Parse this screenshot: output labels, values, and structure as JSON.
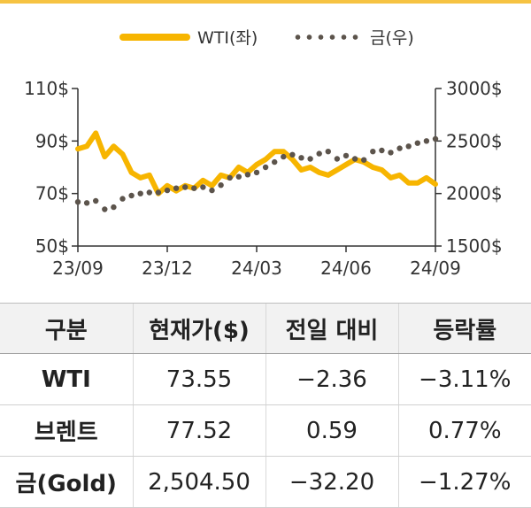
{
  "chart_data": {
    "type": "line",
    "legend": [
      {
        "label": "WTI(좌)",
        "style": "solid",
        "color": "#f7b500"
      },
      {
        "label": "금(우)",
        "style": "dotted",
        "color": "#5c544c"
      }
    ],
    "left_axis": {
      "ticks": [
        "50$",
        "70$",
        "90$",
        "110$"
      ],
      "range": [
        50,
        110
      ]
    },
    "right_axis": {
      "ticks": [
        "1500$",
        "2000$",
        "2500$",
        "3000$"
      ],
      "range": [
        1500,
        3000
      ]
    },
    "x_ticks": [
      "23/09",
      "23/12",
      "24/03",
      "24/06",
      "24/09"
    ],
    "series": [
      {
        "name": "WTI(좌)",
        "axis": "left",
        "color": "#f7b500",
        "x": [
          0,
          0.1,
          0.2,
          0.3,
          0.4,
          0.5,
          0.6,
          0.7,
          0.8,
          0.9,
          1.0,
          1.1,
          1.2,
          1.3,
          1.4,
          1.5,
          1.6,
          1.7,
          1.8,
          1.9,
          2.0,
          2.1,
          2.2,
          2.3,
          2.4,
          2.5,
          2.6,
          2.7,
          2.8,
          2.9,
          3.0,
          3.1,
          3.2,
          3.3,
          3.4,
          3.5,
          3.6,
          3.7,
          3.8,
          3.9,
          4.0
        ],
        "values": [
          87,
          88,
          93,
          84,
          88,
          85,
          78,
          76,
          77,
          70,
          73,
          71,
          73,
          72,
          75,
          73,
          77,
          76,
          80,
          78,
          81,
          83,
          86,
          86,
          83,
          79,
          80,
          78,
          77,
          79,
          81,
          83,
          82,
          80,
          79,
          76,
          77,
          74,
          74,
          76,
          73.55
        ]
      },
      {
        "name": "금(우)",
        "axis": "right",
        "color": "#5c544c",
        "x": [
          0,
          0.1,
          0.2,
          0.3,
          0.4,
          0.5,
          0.6,
          0.7,
          0.8,
          0.9,
          1.0,
          1.1,
          1.2,
          1.3,
          1.4,
          1.5,
          1.6,
          1.7,
          1.8,
          1.9,
          2.0,
          2.1,
          2.2,
          2.3,
          2.4,
          2.5,
          2.6,
          2.7,
          2.8,
          2.9,
          3.0,
          3.1,
          3.2,
          3.3,
          3.4,
          3.5,
          3.6,
          3.7,
          3.8,
          3.9,
          4.0
        ],
        "values": [
          1920,
          1910,
          1930,
          1850,
          1870,
          1950,
          1980,
          2000,
          2010,
          2010,
          2030,
          2050,
          2060,
          2050,
          2060,
          2030,
          2080,
          2150,
          2160,
          2180,
          2200,
          2250,
          2300,
          2350,
          2370,
          2340,
          2330,
          2380,
          2400,
          2330,
          2360,
          2330,
          2320,
          2400,
          2410,
          2390,
          2430,
          2450,
          2480,
          2500,
          2520
        ]
      }
    ]
  },
  "table": {
    "headers": [
      "구분",
      "현재가($)",
      "전일 대비",
      "등락률"
    ],
    "rows": [
      [
        "WTI",
        "73.55",
        "−2.36",
        "−3.11%"
      ],
      [
        "브렌트",
        "77.52",
        "0.59",
        "0.77%"
      ],
      [
        "금(Gold)",
        "2,504.50",
        "−32.20",
        "−1.27%"
      ]
    ]
  }
}
